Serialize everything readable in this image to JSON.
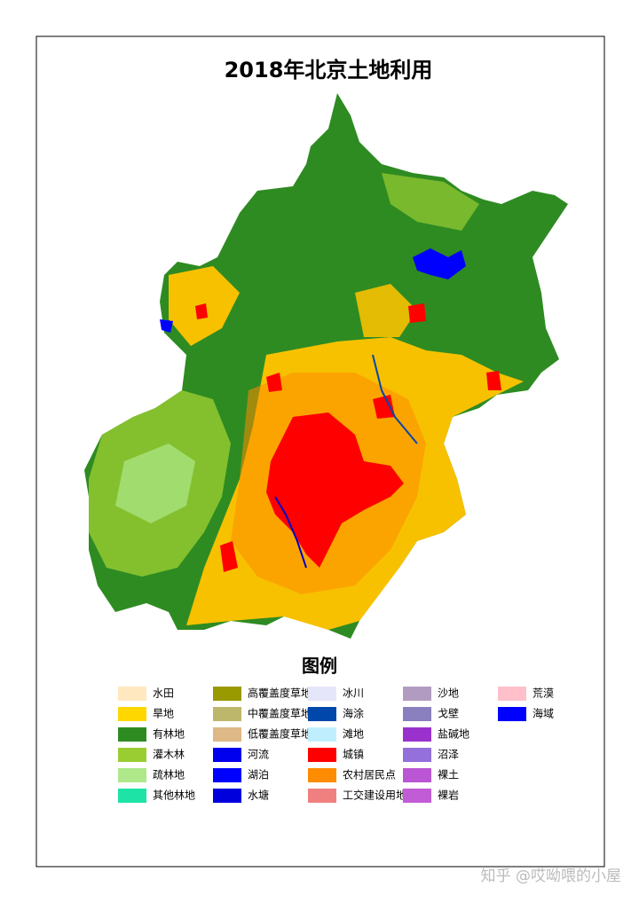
{
  "title": "2018年北京土地利用",
  "legend": {
    "title": "图例",
    "items": [
      {
        "label": "水田",
        "color": "#ffe8c0"
      },
      {
        "label": "旱地",
        "color": "#ffd700"
      },
      {
        "label": "有林地",
        "color": "#2e8b22"
      },
      {
        "label": "灌木林",
        "color": "#9acd32"
      },
      {
        "label": "疏林地",
        "color": "#aee88a"
      },
      {
        "label": "其他林地",
        "color": "#1ee3a6"
      },
      {
        "label": "高覆盖度草地",
        "color": "#999900"
      },
      {
        "label": "中覆盖度草地",
        "color": "#bdb76b"
      },
      {
        "label": "低覆盖度草地",
        "color": "#deb887"
      },
      {
        "label": "河流",
        "color": "#0000ee"
      },
      {
        "label": "湖泊",
        "color": "#0000ff"
      },
      {
        "label": "水塘",
        "color": "#0000dd"
      },
      {
        "label": "冰川",
        "color": "#e6e6fa"
      },
      {
        "label": "海涂",
        "color": "#0047ab"
      },
      {
        "label": "滩地",
        "color": "#bfefff"
      },
      {
        "label": "城镇",
        "color": "#ff0000"
      },
      {
        "label": "农村居民点",
        "color": "#ff8c00"
      },
      {
        "label": "工交建设用地",
        "color": "#f08080"
      },
      {
        "label": "沙地",
        "color": "#b29bc1"
      },
      {
        "label": "戈壁",
        "color": "#8a7fbf"
      },
      {
        "label": "盐碱地",
        "color": "#9932cc"
      },
      {
        "label": "沼泽",
        "color": "#9370db"
      },
      {
        "label": "裸土",
        "color": "#ba55d3"
      },
      {
        "label": "裸岩",
        "color": "#c25bd6"
      },
      {
        "label": "荒漠",
        "color": "#ffc0cb"
      },
      {
        "label": "海域",
        "color": "#0000ff"
      }
    ]
  },
  "watermark": "知乎 @哎呦喂的小屋"
}
